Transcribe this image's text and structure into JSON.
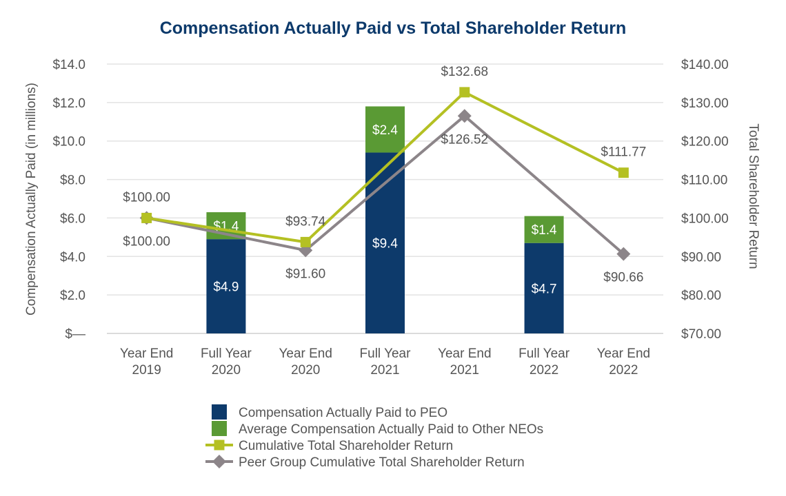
{
  "chart_data": {
    "type": "bar",
    "title": "Compensation Actually Paid vs Total Shareholder Return",
    "ylabel": "Compensation Actually Paid (in millions)",
    "y2label": "Total Shareholder Return",
    "ylim": [
      0,
      14
    ],
    "y2lim": [
      70,
      140
    ],
    "yticks": [
      "$—",
      "$2.0",
      "$4.0",
      "$6.0",
      "$8.0",
      "$10.0",
      "$12.0",
      "$14.0"
    ],
    "y2ticks": [
      "$70.00",
      "$80.00",
      "$90.00",
      "$100.00",
      "$110.00",
      "$120.00",
      "$130.00",
      "$140.00"
    ],
    "categories": [
      [
        "Year End",
        "2019"
      ],
      [
        "Full Year",
        "2020"
      ],
      [
        "Year End",
        "2020"
      ],
      [
        "Full Year",
        "2021"
      ],
      [
        "Year End",
        "2021"
      ],
      [
        "Full Year",
        "2022"
      ],
      [
        "Year End",
        "2022"
      ]
    ],
    "grid": true,
    "legend_position": "bottom",
    "bar_series": [
      {
        "name": "Compensation Actually Paid to PEO",
        "color": "#0d3a6b",
        "values": [
          null,
          4.9,
          null,
          9.4,
          null,
          4.7,
          null
        ],
        "labels": [
          null,
          "$4.9",
          null,
          "$9.4",
          null,
          "$4.7",
          null
        ]
      },
      {
        "name": "Average Compensation Actually Paid to Other NEOs",
        "color": "#5a9a34",
        "values": [
          null,
          1.4,
          null,
          2.4,
          null,
          1.4,
          null
        ],
        "labels": [
          null,
          "$1.4",
          null,
          "$2.4",
          null,
          "$1.4",
          null
        ]
      }
    ],
    "line_series": [
      {
        "name": "Cumulative Total Shareholder Return",
        "color": "#b4c023",
        "marker": "square",
        "axis": "right",
        "points": [
          [
            0,
            100.0
          ],
          [
            2,
            93.74
          ],
          [
            4,
            132.68
          ],
          [
            6,
            111.77
          ]
        ],
        "labels": [
          "$100.00",
          "$93.74",
          "$132.68",
          "$111.77"
        ],
        "label_side": [
          "above",
          "above",
          "above",
          "above"
        ]
      },
      {
        "name": "Peer Group Cumulative Total Shareholder Return",
        "color": "#8c8589",
        "marker": "diamond",
        "axis": "right",
        "points": [
          [
            0,
            100.0
          ],
          [
            2,
            91.6
          ],
          [
            4,
            126.52
          ],
          [
            6,
            90.66
          ]
        ],
        "labels": [
          "$100.00",
          "$91.60",
          "$126.52",
          "$90.66"
        ],
        "label_side": [
          "below",
          "below",
          "below",
          "below"
        ]
      }
    ]
  }
}
